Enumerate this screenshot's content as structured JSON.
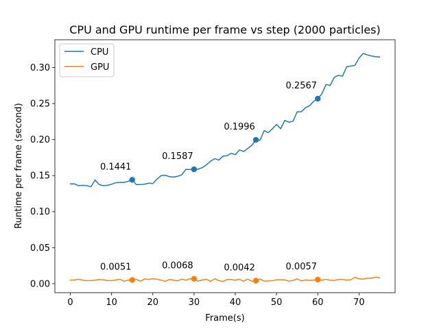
{
  "chart_data": {
    "type": "line",
    "title": "CPU and GPU runtime per frame vs step (2000 particles)",
    "xlabel": "Frame(s)",
    "ylabel": "Runtime per frame (second)",
    "xlim": [
      -3.75,
      78.75
    ],
    "ylim": [
      -0.0125,
      0.3385
    ],
    "xticks": [
      0,
      10,
      20,
      30,
      40,
      50,
      60,
      70
    ],
    "yticks": [
      0.0,
      0.05,
      0.1,
      0.15,
      0.2,
      0.25,
      0.3
    ],
    "ytick_labels": [
      "0.00",
      "0.05",
      "0.10",
      "0.15",
      "0.20",
      "0.25",
      "0.30"
    ],
    "grid": false,
    "legend": "top-left",
    "x": [
      0,
      1,
      2,
      3,
      4,
      5,
      6,
      7,
      8,
      9,
      10,
      11,
      12,
      13,
      14,
      15,
      16,
      17,
      18,
      19,
      20,
      21,
      22,
      23,
      24,
      25,
      26,
      27,
      28,
      29,
      30,
      31,
      32,
      33,
      34,
      35,
      36,
      37,
      38,
      39,
      40,
      41,
      42,
      43,
      44,
      45,
      46,
      47,
      48,
      49,
      50,
      51,
      52,
      53,
      54,
      55,
      56,
      57,
      58,
      59,
      60,
      61,
      62,
      63,
      64,
      65,
      66,
      67,
      68,
      69,
      70,
      71,
      72,
      73,
      74,
      75
    ],
    "series": [
      {
        "name": "CPU",
        "color": "#1f77b4",
        "values": [
          0.1385,
          0.1385,
          0.136,
          0.1365,
          0.136,
          0.1345,
          0.144,
          0.1375,
          0.136,
          0.1365,
          0.138,
          0.14,
          0.1405,
          0.1405,
          0.142,
          0.1441,
          0.1375,
          0.1375,
          0.138,
          0.1395,
          0.139,
          0.145,
          0.15,
          0.1505,
          0.1485,
          0.148,
          0.149,
          0.151,
          0.1585,
          0.1585,
          0.1587,
          0.159,
          0.161,
          0.165,
          0.17,
          0.1735,
          0.1715,
          0.177,
          0.1775,
          0.181,
          0.179,
          0.1855,
          0.1835,
          0.1875,
          0.192,
          0.1996,
          0.199,
          0.2125,
          0.2095,
          0.215,
          0.221,
          0.215,
          0.2265,
          0.224,
          0.2255,
          0.2385,
          0.2385,
          0.244,
          0.247,
          0.253,
          0.2567,
          0.2635,
          0.2765,
          0.275,
          0.2865,
          0.289,
          0.288,
          0.301,
          0.302,
          0.303,
          0.313,
          0.3195,
          0.3175,
          0.316,
          0.315,
          0.3145
        ]
      },
      {
        "name": "GPU",
        "color": "#ff7f0e",
        "values": [
          0.005,
          0.0052,
          0.0062,
          0.005,
          0.0041,
          0.0044,
          0.0049,
          0.0058,
          0.0053,
          0.0044,
          0.0042,
          0.0051,
          0.0062,
          0.0035,
          0.0049,
          0.0051,
          0.0062,
          0.0035,
          0.0066,
          0.0058,
          0.0069,
          0.0061,
          0.0049,
          0.0032,
          0.0059,
          0.005,
          0.0039,
          0.0064,
          0.0048,
          0.0069,
          0.0068,
          0.0035,
          0.0052,
          0.0061,
          0.0031,
          0.0068,
          0.0042,
          0.0031,
          0.0058,
          0.0058,
          0.0048,
          0.0063,
          0.0035,
          0.0064,
          0.0034,
          0.0042,
          0.0065,
          0.0036,
          0.0038,
          0.0041,
          0.0054,
          0.0054,
          0.0053,
          0.0035,
          0.0045,
          0.0067,
          0.0038,
          0.0052,
          0.0046,
          0.005,
          0.0057,
          0.0049,
          0.0061,
          0.0049,
          0.0045,
          0.006,
          0.0058,
          0.005,
          0.0056,
          0.0088,
          0.0068,
          0.0062,
          0.0077,
          0.0076,
          0.0091,
          0.0081
        ]
      }
    ],
    "markers": [
      {
        "series": "CPU",
        "x": 15,
        "y": 0.1441,
        "label": "0.1441"
      },
      {
        "series": "CPU",
        "x": 30,
        "y": 0.1587,
        "label": "0.1587"
      },
      {
        "series": "CPU",
        "x": 45,
        "y": 0.1996,
        "label": "0.1996"
      },
      {
        "series": "CPU",
        "x": 60,
        "y": 0.2567,
        "label": "0.2567"
      },
      {
        "series": "GPU",
        "x": 15,
        "y": 0.0051,
        "label": "0.0051"
      },
      {
        "series": "GPU",
        "x": 30,
        "y": 0.0068,
        "label": "0.0068"
      },
      {
        "series": "GPU",
        "x": 45,
        "y": 0.0042,
        "label": "0.0042"
      },
      {
        "series": "GPU",
        "x": 60,
        "y": 0.0057,
        "label": "0.0057"
      }
    ]
  }
}
